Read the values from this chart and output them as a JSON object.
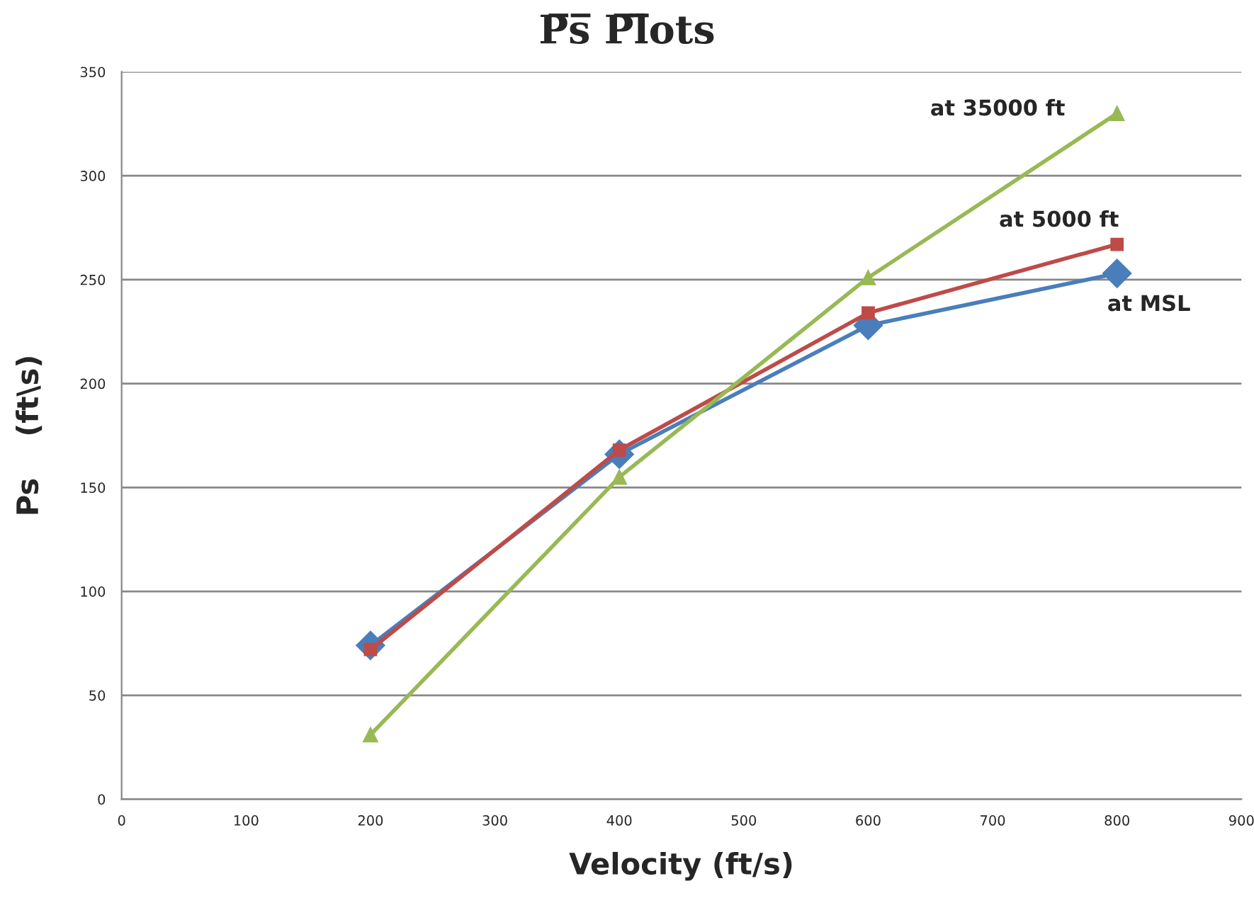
{
  "chart_data": {
    "type": "line",
    "title": "P̅s̅ P̅l̅ots",
    "xlabel": "Velocity (ft/s)",
    "ylabel": "Ps    (ft\\s)",
    "x": [
      200,
      400,
      600,
      800
    ],
    "series": [
      {
        "name": "at MSL",
        "color": "#4a7ebb",
        "marker": "diamond",
        "values": [
          74,
          166,
          228,
          253
        ]
      },
      {
        "name": "at 5000 ft",
        "color": "#be4b48",
        "marker": "square",
        "values": [
          72,
          168,
          234,
          267
        ]
      },
      {
        "name": "at 35000 ft",
        "color": "#98b954",
        "marker": "triangle",
        "values": [
          31,
          155,
          251,
          330
        ]
      }
    ],
    "xlim": [
      0,
      900
    ],
    "xticks": [
      0,
      100,
      200,
      300,
      400,
      500,
      600,
      700,
      800,
      900
    ],
    "ylim": [
      0,
      350
    ],
    "yticks": [
      0,
      50,
      100,
      150,
      200,
      250,
      300,
      350
    ],
    "grid": "y",
    "legend": false,
    "line_style": "solid"
  }
}
